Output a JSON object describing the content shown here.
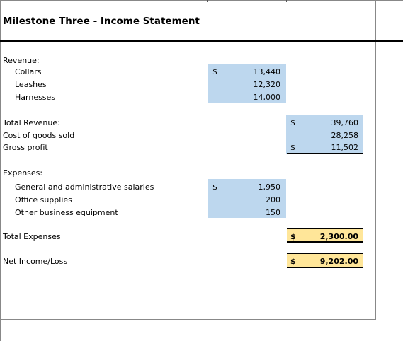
{
  "title": "Milestone Three - Income Statement",
  "revenue": {
    "heading": "Revenue:",
    "currency": "$",
    "items": [
      {
        "label": "Collars",
        "value": "13,440"
      },
      {
        "label": "Leashes",
        "value": "12,320"
      },
      {
        "label": "Harnesses",
        "value": "14,000"
      }
    ]
  },
  "totals": {
    "currency": "$",
    "total_revenue_label": "Total Revenue:",
    "total_revenue_value": "39,760",
    "cogs_label": "Cost of goods sold",
    "cogs_value": "28,258",
    "gross_profit_label": "Gross profit",
    "gross_profit_currency": "$",
    "gross_profit_value": "11,502"
  },
  "expenses": {
    "heading": "Expenses:",
    "currency": "$",
    "items": [
      {
        "label": "General and administrative salaries",
        "value": "1,950"
      },
      {
        "label": "Office supplies",
        "value": "200"
      },
      {
        "label": "Other business equipment",
        "value": "150"
      }
    ]
  },
  "total_expenses": {
    "label": "Total Expenses",
    "currency": "$",
    "value": "2,300.00"
  },
  "net_income": {
    "label": "Net Income/Loss",
    "currency": "$",
    "value": "9,202.00"
  },
  "colors": {
    "input_fill": "#bdd7ee",
    "total_fill": "#ffe699"
  }
}
